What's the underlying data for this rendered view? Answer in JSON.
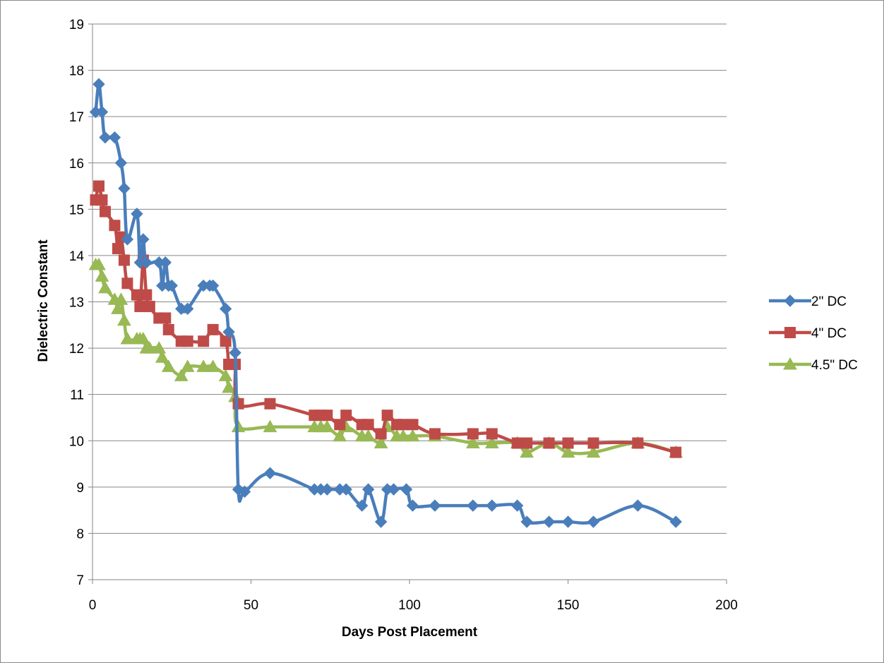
{
  "chart_data": {
    "type": "line",
    "title": "",
    "xlabel": "Days Post Placement",
    "ylabel": "Dielectric Constant",
    "xlim": [
      0,
      200
    ],
    "ylim": [
      7,
      19
    ],
    "xticks": [
      0,
      50,
      100,
      150,
      200
    ],
    "yticks": [
      7,
      8,
      9,
      10,
      11,
      12,
      13,
      14,
      15,
      16,
      17,
      18,
      19
    ],
    "grid": "horizontal",
    "legend_position": "right",
    "smoothed": true,
    "series": [
      {
        "name": "2\" DC",
        "color": "#4a7ebb",
        "marker": "diamond",
        "x": [
          1,
          2,
          3,
          4,
          7,
          9,
          10,
          11,
          14,
          15,
          16,
          17,
          21,
          22,
          23,
          24,
          25,
          28,
          30,
          35,
          37,
          38,
          42,
          43,
          45,
          46,
          48,
          56,
          70,
          72,
          74,
          78,
          80,
          85,
          87,
          91,
          93,
          95,
          99,
          101,
          108,
          120,
          126,
          134,
          137,
          144,
          150,
          158,
          172,
          184
        ],
        "y": [
          17.1,
          17.7,
          17.1,
          16.55,
          16.55,
          16.0,
          15.45,
          14.35,
          14.9,
          13.85,
          14.35,
          13.85,
          13.85,
          13.35,
          13.85,
          13.35,
          13.35,
          12.85,
          12.85,
          13.35,
          13.35,
          13.35,
          12.85,
          12.35,
          11.9,
          8.95,
          8.9,
          9.3,
          8.95,
          8.95,
          8.95,
          8.95,
          8.95,
          8.6,
          8.95,
          8.25,
          8.95,
          8.95,
          8.95,
          8.6,
          8.6,
          8.6,
          8.6,
          8.6,
          8.25,
          8.25,
          8.25,
          8.25,
          8.6,
          8.25
        ]
      },
      {
        "name": "4\" DC",
        "color": "#be4b48",
        "marker": "square",
        "x": [
          1,
          2,
          3,
          4,
          7,
          8,
          9,
          10,
          11,
          14,
          15,
          16,
          17,
          18,
          21,
          23,
          24,
          28,
          30,
          35,
          38,
          42,
          43,
          44,
          45,
          46,
          56,
          70,
          72,
          74,
          78,
          80,
          85,
          87,
          91,
          93,
          96,
          98,
          101,
          108,
          120,
          126,
          134,
          137,
          144,
          150,
          158,
          172,
          184
        ],
        "y": [
          15.2,
          15.5,
          15.2,
          14.95,
          14.65,
          14.15,
          14.4,
          13.9,
          13.4,
          13.15,
          12.9,
          13.9,
          13.15,
          12.9,
          12.65,
          12.65,
          12.4,
          12.15,
          12.15,
          12.15,
          12.4,
          12.15,
          11.65,
          11.65,
          11.65,
          10.8,
          10.8,
          10.55,
          10.55,
          10.55,
          10.35,
          10.55,
          10.35,
          10.35,
          10.15,
          10.55,
          10.35,
          10.35,
          10.35,
          10.15,
          10.15,
          10.15,
          9.95,
          9.95,
          9.95,
          9.95,
          9.95,
          9.95,
          9.75
        ]
      },
      {
        "name": "4.5\" DC",
        "color": "#98b954",
        "marker": "triangle",
        "x": [
          1,
          2,
          3,
          4,
          7,
          8,
          9,
          10,
          11,
          14,
          15,
          16,
          17,
          18,
          21,
          22,
          24,
          28,
          30,
          35,
          38,
          42,
          43,
          45,
          46,
          56,
          70,
          72,
          74,
          78,
          80,
          85,
          87,
          91,
          93,
          96,
          98,
          101,
          108,
          120,
          126,
          134,
          137,
          144,
          150,
          158,
          172,
          184
        ],
        "y": [
          13.8,
          13.8,
          13.55,
          13.3,
          13.05,
          12.85,
          13.05,
          12.6,
          12.2,
          12.2,
          12.2,
          12.2,
          12.0,
          12.0,
          12.0,
          11.8,
          11.6,
          11.4,
          11.6,
          11.6,
          11.6,
          11.4,
          11.15,
          10.95,
          10.3,
          10.3,
          10.3,
          10.3,
          10.3,
          10.1,
          10.3,
          10.1,
          10.1,
          9.95,
          10.3,
          10.1,
          10.1,
          10.1,
          10.1,
          9.95,
          9.95,
          9.95,
          9.75,
          9.95,
          9.75,
          9.75,
          9.95,
          9.75
        ]
      }
    ]
  }
}
